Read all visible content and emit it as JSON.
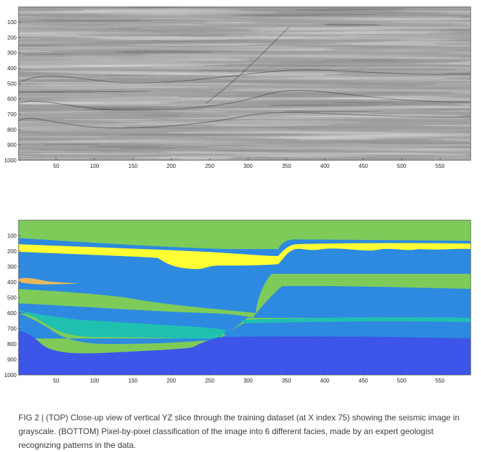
{
  "figure": {
    "caption": "FIG 2 | (TOP) Close-up view of vertical YZ slice through the training dataset (at X index 75) showing the seismic image in grayscale. (BOTTOM) Pixel-by-pixel classification of the image into 6 different facies, made by an expert geologist recognizing patterns in the data."
  },
  "chart_data": [
    {
      "type": "heatmap",
      "description_colormap": "grayscale",
      "title": "",
      "xlabel": "",
      "ylabel": "",
      "xlim": [
        1,
        590
      ],
      "ylim": [
        1000,
        1
      ],
      "x_ticks": [
        50,
        100,
        150,
        200,
        250,
        300,
        350,
        400,
        450,
        500,
        550
      ],
      "y_ticks": [
        100,
        200,
        300,
        400,
        500,
        600,
        700,
        800,
        900,
        1000
      ],
      "grid": false
    },
    {
      "type": "heatmap",
      "title": "",
      "xlabel": "",
      "ylabel": "",
      "xlim": [
        1,
        590
      ],
      "ylim": [
        1000,
        1
      ],
      "x_ticks": [
        50,
        100,
        150,
        200,
        250,
        300,
        350,
        400,
        450,
        500,
        550
      ],
      "y_ticks": [
        100,
        200,
        300,
        400,
        500,
        600,
        700,
        800,
        900,
        1000
      ],
      "grid": false,
      "facies_colors": [
        "#7ecb5a",
        "#2d8ae0",
        "#ffff33",
        "#eab95c",
        "#20c0b0",
        "#3d55e8"
      ]
    }
  ]
}
